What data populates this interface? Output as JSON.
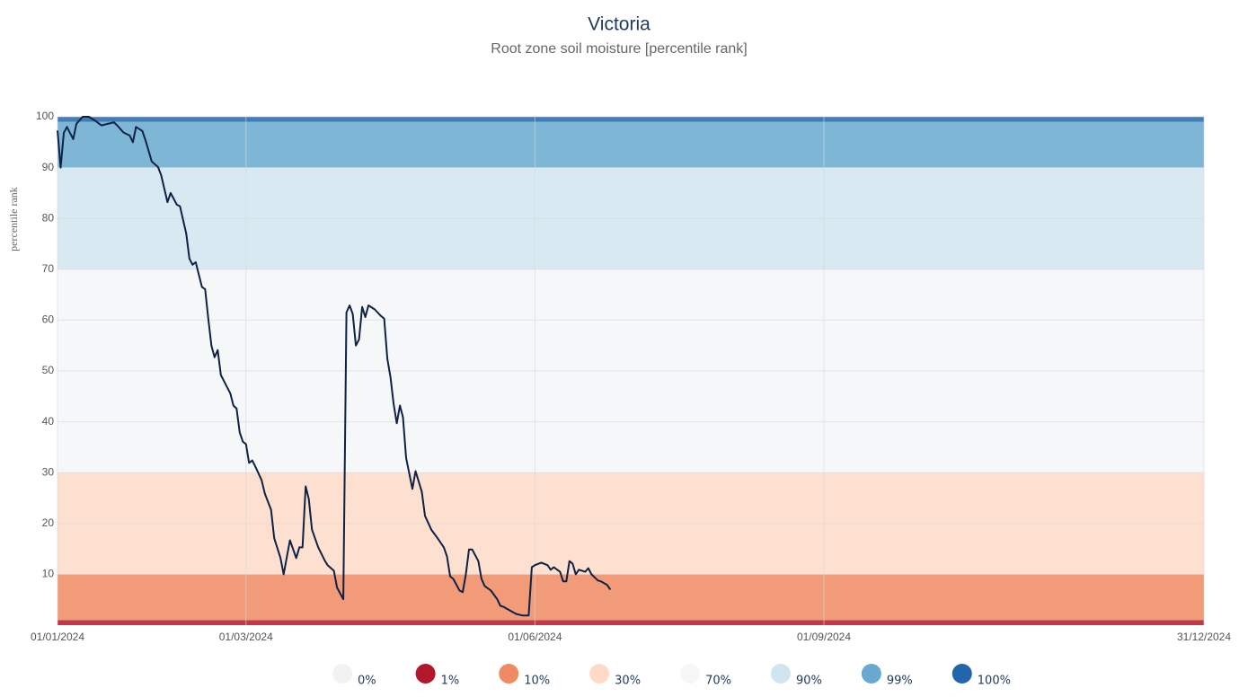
{
  "chart_data": {
    "type": "line",
    "title": "Victoria",
    "subtitle": "Root zone soil moisture [percentile rank]",
    "y_label": "percentile rank",
    "xlim": [
      "01/01/2024",
      "31/12/2024"
    ],
    "xticks": [
      "01/01/2024",
      "01/03/2024",
      "01/06/2024",
      "01/09/2024",
      "31/12/2024"
    ],
    "ylim": [
      0,
      100
    ],
    "yticks": [
      10,
      20,
      30,
      40,
      50,
      60,
      70,
      80,
      90,
      100
    ],
    "grid": true,
    "color": "#0d2244",
    "x": [
      "01/01/2024",
      "02/01/2024",
      "03/01/2024",
      "04/01/2024",
      "06/01/2024",
      "07/01/2024",
      "09/01/2024",
      "11/01/2024",
      "13/01/2024",
      "15/01/2024",
      "17/01/2024",
      "19/01/2024",
      "20/01/2024",
      "22/01/2024",
      "24/01/2024",
      "25/01/2024",
      "26/01/2024",
      "28/01/2024",
      "29/01/2024",
      "31/01/2024",
      "02/02/2024",
      "03/02/2024",
      "05/02/2024",
      "06/02/2024",
      "08/02/2024",
      "09/02/2024",
      "11/02/2024",
      "12/02/2024",
      "13/02/2024",
      "14/02/2024",
      "16/02/2024",
      "17/02/2024",
      "18/02/2024",
      "19/02/2024",
      "20/02/2024",
      "21/02/2024",
      "22/02/2024",
      "23/02/2024",
      "25/02/2024",
      "26/02/2024",
      "27/02/2024",
      "28/02/2024",
      "29/02/2024",
      "01/03/2024",
      "02/03/2024",
      "03/03/2024",
      "04/03/2024",
      "06/03/2024",
      "07/03/2024",
      "09/03/2024",
      "10/03/2024",
      "12/03/2024",
      "13/03/2024",
      "15/03/2024",
      "17/03/2024",
      "18/03/2024",
      "19/03/2024",
      "20/03/2024",
      "21/03/2024",
      "22/03/2024",
      "24/03/2024",
      "26/03/2024",
      "27/03/2024",
      "29/03/2024",
      "30/03/2024",
      "01/04/2024",
      "02/04/2024",
      "03/04/2024",
      "04/04/2024",
      "05/04/2024",
      "06/04/2024",
      "07/04/2024",
      "08/04/2024",
      "09/04/2024",
      "11/04/2024",
      "13/04/2024",
      "14/04/2024",
      "15/04/2024",
      "16/04/2024",
      "17/04/2024",
      "18/04/2024",
      "19/04/2024",
      "20/04/2024",
      "21/04/2024",
      "23/04/2024",
      "24/04/2024",
      "26/04/2024",
      "27/04/2024",
      "29/04/2024",
      "01/05/2024",
      "03/05/2024",
      "04/05/2024",
      "05/05/2024",
      "06/05/2024",
      "08/05/2024",
      "09/05/2024",
      "10/05/2024",
      "11/05/2024",
      "12/05/2024",
      "14/05/2024",
      "15/05/2024",
      "16/05/2024",
      "18/05/2024",
      "20/05/2024",
      "21/05/2024",
      "22/05/2024",
      "24/05/2024",
      "26/05/2024",
      "28/05/2024",
      "30/05/2024",
      "31/05/2024",
      "01/06/2024",
      "03/06/2024",
      "05/06/2024",
      "06/06/2024",
      "07/06/2024",
      "09/06/2024",
      "10/06/2024",
      "11/06/2024",
      "12/06/2024",
      "13/06/2024",
      "14/06/2024",
      "15/06/2024",
      "17/06/2024",
      "18/06/2024",
      "19/06/2024",
      "21/06/2024",
      "22/06/2024",
      "24/06/2024",
      "25/06/2024"
    ],
    "values": [
      97.3,
      90,
      96.8,
      98,
      95.6,
      98.6,
      100,
      100,
      99.2,
      98.3,
      98.6,
      98.9,
      98.3,
      96.9,
      96.3,
      95,
      98,
      97.2,
      95.4,
      91.2,
      90.1,
      88.5,
      83.2,
      85,
      82.7,
      82.4,
      77,
      72.1,
      70.9,
      71.4,
      66.5,
      66.1,
      60.3,
      55,
      52.7,
      54.1,
      49.2,
      48,
      45.6,
      43.2,
      42.6,
      37.9,
      36.1,
      35.6,
      31.9,
      32.4,
      31.2,
      28.5,
      25.9,
      22.7,
      17.1,
      13.2,
      10,
      16.7,
      13.2,
      15.3,
      15.3,
      27.3,
      24.8,
      18.8,
      15.3,
      12.8,
      11.8,
      10.7,
      7.4,
      5.1,
      61.5,
      62.9,
      61.2,
      55,
      56.2,
      62.6,
      60.6,
      62.9,
      62.1,
      60.8,
      60.3,
      52.4,
      48.8,
      43.5,
      39.7,
      43.2,
      40.9,
      32.9,
      26.8,
      30.3,
      26.2,
      21.5,
      18.8,
      17.1,
      15.3,
      13.5,
      9.6,
      9.1,
      6.8,
      6.5,
      10,
      14.9,
      14.9,
      12.6,
      9.1,
      7.7,
      6.8,
      5.1,
      3.8,
      3.6,
      2.9,
      2.2,
      1.9,
      1.9,
      11.4,
      11.8,
      12.3,
      11.8,
      10.9,
      11.4,
      10.5,
      8.6,
      8.6,
      12.6,
      12.1,
      10,
      10.9,
      10.5,
      11.2,
      10,
      8.8,
      8.6,
      7.9,
      7
    ],
    "legend": [
      {
        "value": 0,
        "label": "0%",
        "color": "#f2f2f2"
      },
      {
        "value": 1,
        "label": "1%",
        "color": "#b2182b"
      },
      {
        "value": 10,
        "label": "10%",
        "color": "#ef8a62"
      },
      {
        "value": 30,
        "label": "30%",
        "color": "#fddbc7"
      },
      {
        "value": 70,
        "label": "70%",
        "color": "#f4f6f8"
      },
      {
        "value": 90,
        "label": "90%",
        "color": "#d1e5f0"
      },
      {
        "value": 99,
        "label": "99%",
        "color": "#67a9cf"
      },
      {
        "value": 100,
        "label": "100%",
        "color": "#2166ac"
      }
    ]
  }
}
